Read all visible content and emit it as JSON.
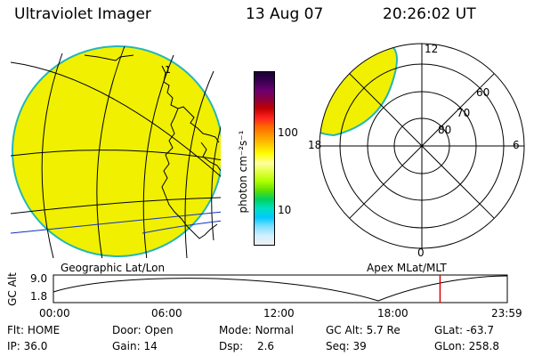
{
  "header": {
    "instrument": "Ultraviolet Imager",
    "date": "13 Aug 07",
    "time": "20:26:02 UT"
  },
  "colors": {
    "image_fill": "#f0f000",
    "image_edge": "#22b7b7",
    "grid": "#000000",
    "coast": "#000000",
    "marker": "#dd0000"
  },
  "colorbar": {
    "unit": "photon cm⁻²s⁻¹",
    "ticks": [
      "100",
      "10"
    ],
    "stops": [
      "#1a0033",
      "#3a0050",
      "#6a0070",
      "#8a0040",
      "#c00000",
      "#ff2020",
      "#ff6600",
      "#ff9900",
      "#ffcc00",
      "#ffff00",
      "#ffffa0",
      "#e0ff40",
      "#b0ff00",
      "#60e000",
      "#00d060",
      "#00e0c0",
      "#00c8ff",
      "#80e0ff",
      "#d0f0ff",
      "#f0f0f0"
    ]
  },
  "map_panel": {
    "label": "Geographic Lat/Lon",
    "meridian_tick": "1"
  },
  "polar_panel": {
    "label": "Apex MLat/MLT",
    "mlt_labels": {
      "top": "12",
      "bottom": "0",
      "left": "18",
      "right": "6"
    },
    "lat_labels": [
      "80",
      "70",
      "60"
    ]
  },
  "altitude_plot": {
    "ylabel": "GC Alt",
    "yticks": [
      "9.0",
      "1.8"
    ],
    "xticks": [
      "00:00",
      "06:00",
      "12:00",
      "18:00",
      "23:59"
    ],
    "marker_time_hours": 20.43
  },
  "status": {
    "flt": {
      "label": "Flt:",
      "value": "HOME"
    },
    "ip": {
      "label": "IP:",
      "value": "36.0"
    },
    "door": {
      "label": "Door:",
      "value": "Open"
    },
    "gain": {
      "label": "Gain:",
      "value": "14"
    },
    "mode": {
      "label": "Mode:",
      "value": "Normal"
    },
    "dsp": {
      "label": "Dsp:",
      "value": "2.6"
    },
    "gcalt": {
      "label": "GC Alt:",
      "value": "5.7 Re"
    },
    "seq": {
      "label": "Seq:",
      "value": "39"
    },
    "glat": {
      "label": "GLat:",
      "value": "-63.7"
    },
    "glon": {
      "label": "GLon:",
      "value": "258.8"
    }
  }
}
